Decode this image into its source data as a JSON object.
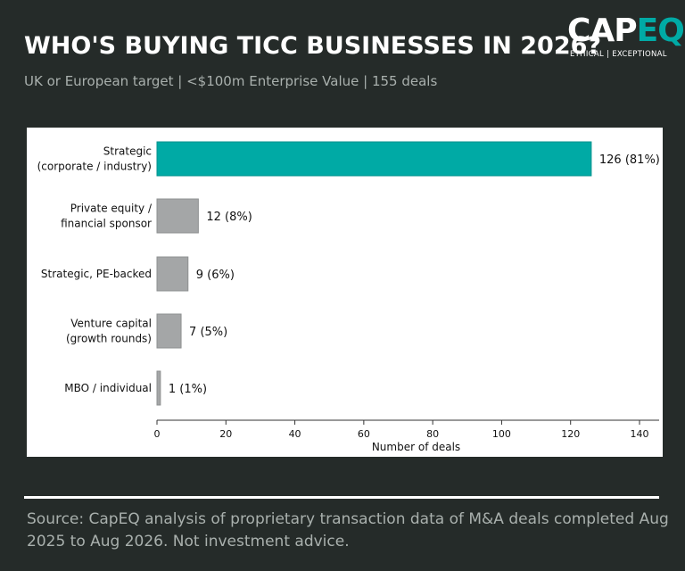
{
  "header": {
    "title": "WHO'S BUYING TICC BUSINESSES IN 2026?",
    "subtitle": "UK or European target | <$100m Enterprise Value |  155 deals"
  },
  "logo": {
    "word_part1": "CAP",
    "word_part2": "EQ",
    "tagline": "ETHICAL | EXCEPTIONAL"
  },
  "footer": {
    "source": "Source: CapEQ analysis of proprietary transaction data of M&A deals completed Aug 2025 to Aug 2026. Not investment advice."
  },
  "colors": {
    "background": "#252b29",
    "accent_teal": "#00aaa5",
    "bar_grey": "#a4a6a7"
  },
  "chart_data": {
    "type": "bar",
    "orientation": "horizontal",
    "categories": [
      [
        "Strategic",
        "(corporate / industry)"
      ],
      [
        "Private equity /",
        "financial sponsor"
      ],
      [
        "Strategic, PE-backed"
      ],
      [
        "Venture capital",
        "(growth rounds)"
      ],
      [
        "MBO / individual"
      ]
    ],
    "values": [
      126,
      12,
      9,
      7,
      1
    ],
    "data_labels": [
      "126  (81%)",
      "12  (8%)",
      "9  (6%)",
      "7  (5%)",
      "1  (1%)"
    ],
    "bar_colors": [
      "#00aaa5",
      "#a4a6a7",
      "#a4a6a7",
      "#a4a6a7",
      "#a4a6a7"
    ],
    "xlabel": "Number of deals",
    "xlim": [
      0,
      140
    ],
    "xticks": [
      0,
      20,
      40,
      60,
      80,
      100,
      120,
      140
    ],
    "grid": false
  }
}
